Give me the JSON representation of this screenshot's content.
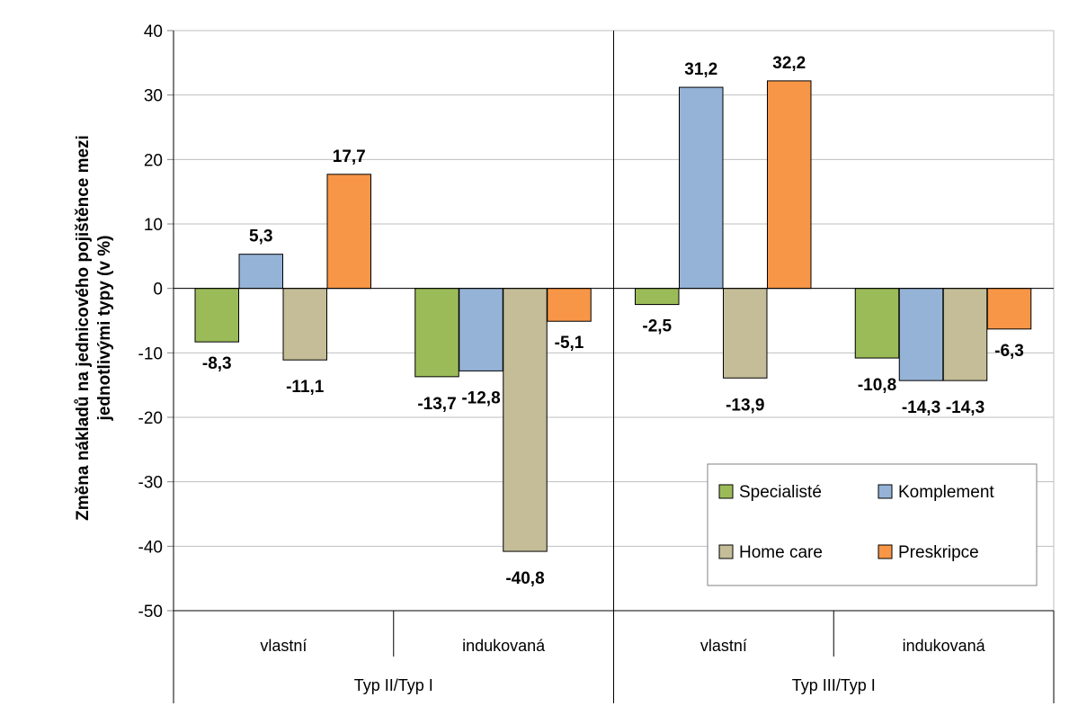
{
  "chart_data": {
    "type": "bar",
    "ylabel_lines": [
      "Změna nákladů na jednicového pojištěnce mezi",
      "jednotlivými typy (v %)"
    ],
    "ylim": [
      -50,
      40
    ],
    "yticks": [
      "40",
      "30",
      "20",
      "10",
      "0",
      "-10",
      "-20",
      "-30",
      "-40",
      "-50"
    ],
    "grid": true,
    "legend_position": "bottom-right",
    "groups": [
      {
        "label": "Typ II/Typ I",
        "categories": [
          "vlastní",
          "indukovaná"
        ]
      },
      {
        "label": "Typ III/Typ I",
        "categories": [
          "vlastní",
          "indukovaná"
        ]
      }
    ],
    "categories": [
      "vlastní",
      "indukovaná",
      "vlastní",
      "indukovaná"
    ],
    "series": [
      {
        "name": "Specialisté",
        "color": "#9bbb59",
        "values": [
          -8.3,
          -13.7,
          -2.5,
          -10.8
        ],
        "labels": [
          "-8,3",
          "-13,7",
          "-2,5",
          "-10,8"
        ]
      },
      {
        "name": "Komplement",
        "color": "#95b3d7",
        "values": [
          5.3,
          -12.8,
          31.2,
          -14.3
        ],
        "labels": [
          "5,3",
          "-12,8",
          "31,2",
          "-14,3"
        ]
      },
      {
        "name": "Home care",
        "color": "#c4bd97",
        "values": [
          -11.1,
          -40.8,
          -13.9,
          -14.3
        ],
        "labels": [
          "-11,1",
          "-40,8",
          "-13,9",
          "-14,3"
        ]
      },
      {
        "name": "Preskripce",
        "color": "#f79646",
        "values": [
          17.7,
          -5.1,
          32.2,
          -6.3
        ],
        "labels": [
          "17,7",
          "-5,1",
          "32,2",
          "-6,3"
        ]
      }
    ]
  }
}
